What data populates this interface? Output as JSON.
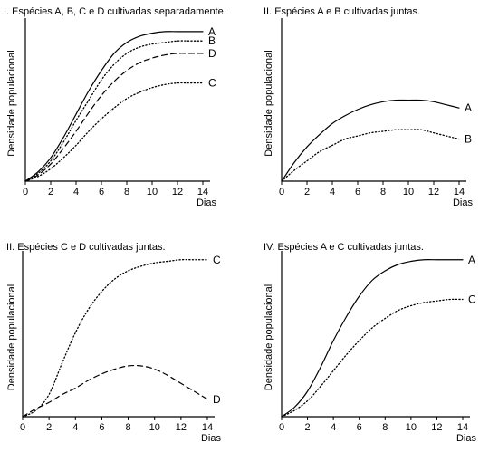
{
  "chart_data": [
    {
      "type": "line",
      "title": "I. Espécies A, B, C e D cultivadas separadamente.",
      "xlabel": "Dias",
      "ylabel": "Densidade populacional",
      "xticks": [
        0,
        2,
        4,
        6,
        8,
        10,
        12,
        14
      ],
      "xlim": [
        0,
        14
      ],
      "ylim": [
        0,
        100
      ],
      "series": [
        {
          "name": "A",
          "style": "solid",
          "x": [
            0,
            1,
            2,
            3,
            4,
            5,
            6,
            7,
            8,
            9,
            10,
            11,
            12,
            13,
            14
          ],
          "y": [
            0,
            6,
            15,
            28,
            43,
            58,
            71,
            82,
            89,
            93,
            95,
            96,
            96,
            96,
            96
          ]
        },
        {
          "name": "B",
          "style": "dotted",
          "x": [
            0,
            1,
            2,
            3,
            4,
            5,
            6,
            7,
            8,
            9,
            10,
            11,
            12,
            13,
            14
          ],
          "y": [
            0,
            5,
            13,
            25,
            39,
            52,
            65,
            75,
            82,
            86,
            88,
            89,
            90,
            90,
            90
          ]
        },
        {
          "name": "D",
          "style": "dashed",
          "x": [
            0,
            1,
            2,
            3,
            4,
            5,
            6,
            7,
            8,
            9,
            10,
            11,
            12,
            13,
            14
          ],
          "y": [
            0,
            4,
            11,
            21,
            32,
            44,
            55,
            64,
            71,
            76,
            79,
            81,
            82,
            82,
            82
          ]
        },
        {
          "name": "C",
          "style": "dotted",
          "x": [
            0,
            1,
            2,
            3,
            4,
            5,
            6,
            7,
            8,
            9,
            10,
            11,
            12,
            13,
            14
          ],
          "y": [
            0,
            3,
            8,
            15,
            23,
            32,
            40,
            47,
            53,
            57,
            60,
            62,
            63,
            63,
            63
          ]
        }
      ]
    },
    {
      "type": "line",
      "title": "II. Espécies A e B cultivadas juntas.",
      "xlabel": "Dias",
      "ylabel": "Densidade populacional",
      "xticks": [
        0,
        2,
        4,
        6,
        8,
        10,
        12,
        14
      ],
      "xlim": [
        0,
        14
      ],
      "ylim": [
        0,
        100
      ],
      "series": [
        {
          "name": "A",
          "style": "solid",
          "x": [
            0,
            1,
            2,
            3,
            4,
            5,
            6,
            7,
            8,
            9,
            10,
            11,
            12,
            13,
            14
          ],
          "y": [
            0,
            12,
            22,
            30,
            37,
            42,
            46,
            49,
            51,
            52,
            52,
            52,
            51,
            49,
            47
          ]
        },
        {
          "name": "B",
          "style": "dotted",
          "x": [
            0,
            1,
            2,
            3,
            4,
            5,
            6,
            7,
            8,
            9,
            10,
            11,
            12,
            13,
            14
          ],
          "y": [
            0,
            7,
            13,
            19,
            23,
            27,
            29,
            31,
            32,
            33,
            33,
            33,
            31,
            29,
            27
          ]
        }
      ]
    },
    {
      "type": "line",
      "title": "III. Espécies C e D cultivadas juntas.",
      "xlabel": "Dias",
      "ylabel": "Densidade populacional",
      "xticks": [
        0,
        2,
        4,
        6,
        8,
        10,
        12,
        14
      ],
      "xlim": [
        0,
        14
      ],
      "ylim": [
        0,
        100
      ],
      "series": [
        {
          "name": "C",
          "style": "dotted",
          "x": [
            0,
            1,
            2,
            3,
            4,
            5,
            6,
            7,
            8,
            9,
            10,
            11,
            12,
            13,
            14
          ],
          "y": [
            0,
            4,
            14,
            34,
            53,
            68,
            79,
            87,
            92,
            95,
            97,
            98,
            99,
            99,
            99
          ]
        },
        {
          "name": "D",
          "style": "dashed",
          "x": [
            0,
            1,
            2,
            3,
            4,
            5,
            6,
            7,
            8,
            9,
            10,
            11,
            12,
            13,
            14
          ],
          "y": [
            0,
            5,
            9,
            14,
            18,
            23,
            27,
            30,
            32,
            32,
            30,
            26,
            21,
            16,
            11
          ]
        }
      ]
    },
    {
      "type": "line",
      "title": "IV. Espécies A e C cultivadas juntas.",
      "xlabel": "Dias",
      "ylabel": "Densidade populacional",
      "xticks": [
        0,
        2,
        4,
        6,
        8,
        10,
        12,
        14
      ],
      "xlim": [
        0,
        14
      ],
      "ylim": [
        0,
        100
      ],
      "series": [
        {
          "name": "A",
          "style": "solid",
          "x": [
            0,
            1,
            2,
            3,
            4,
            5,
            6,
            7,
            8,
            9,
            10,
            11,
            12,
            13,
            14
          ],
          "y": [
            0,
            6,
            16,
            31,
            48,
            63,
            76,
            86,
            92,
            96,
            98,
            99,
            99,
            99,
            99
          ]
        },
        {
          "name": "C",
          "style": "dotted",
          "x": [
            0,
            1,
            2,
            3,
            4,
            5,
            6,
            7,
            8,
            9,
            10,
            11,
            12,
            13,
            14
          ],
          "y": [
            0,
            4,
            10,
            19,
            29,
            39,
            48,
            56,
            62,
            67,
            70,
            72,
            73,
            74,
            74
          ]
        }
      ]
    }
  ]
}
